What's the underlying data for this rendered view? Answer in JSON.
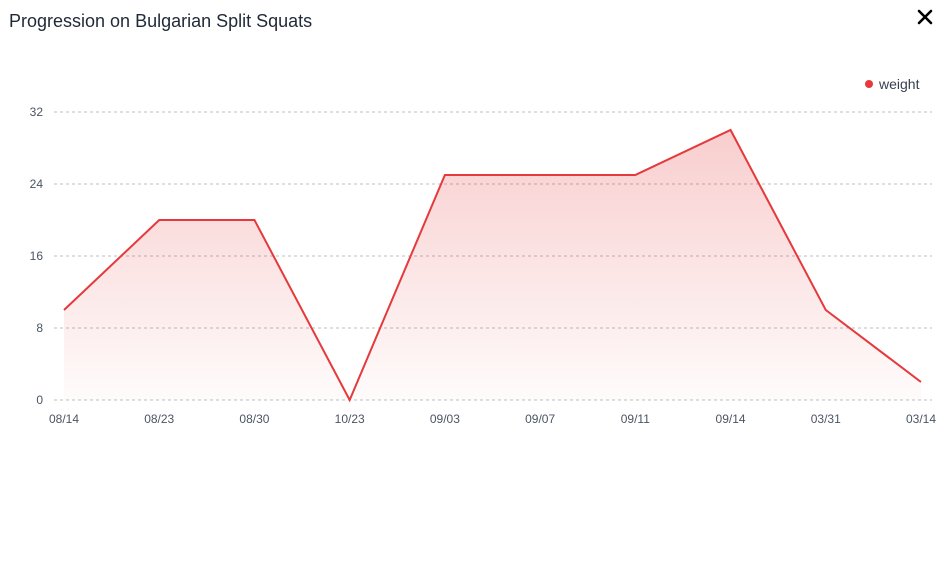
{
  "header": {
    "title": "Progression on Bulgarian Split Squats",
    "close_icon": "close-icon"
  },
  "chart_data": {
    "type": "area",
    "categories": [
      "08/14",
      "08/23",
      "08/30",
      "10/23",
      "09/03",
      "09/07",
      "09/11",
      "09/14",
      "03/31",
      "03/14"
    ],
    "series": [
      {
        "name": "weight",
        "values": [
          10,
          20,
          20,
          0,
          25,
          25,
          25,
          30,
          10,
          2
        ]
      }
    ],
    "yticks": [
      0,
      8,
      16,
      24,
      32
    ],
    "ylim": [
      0,
      32
    ],
    "grid": true,
    "legend_position": "top-right",
    "color": "#e5393b"
  }
}
